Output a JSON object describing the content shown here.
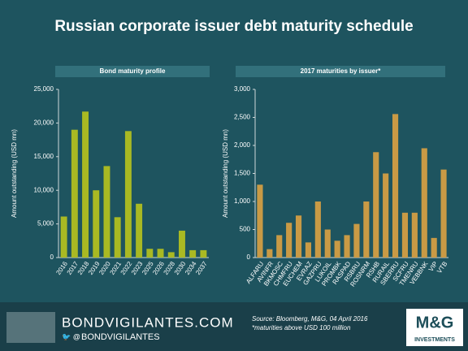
{
  "title": "Russian corporate issuer debt maturity schedule",
  "chart_data": [
    {
      "type": "bar",
      "title": "Bond maturity profile",
      "y_label": "Amount outstanding (USD mn)",
      "categories": [
        "2016",
        "2017",
        "2018",
        "2019",
        "2020",
        "2021",
        "2022",
        "2023",
        "2025",
        "2026",
        "2028",
        "2030",
        "2034",
        "2037"
      ],
      "values": [
        6100,
        19000,
        21700,
        10000,
        13600,
        6000,
        18800,
        8000,
        1300,
        1300,
        800,
        4000,
        1100,
        1100
      ],
      "color": "#a9b923",
      "ylim": [
        0,
        25000
      ],
      "yticks": [
        0,
        {
          "value": 5000,
          "label": "5,000"
        },
        {
          "value": 10000,
          "label": "10,000"
        },
        {
          "value": 15000,
          "label": "15,000"
        },
        {
          "value": 20000,
          "label": "20,000"
        },
        {
          "value": 25000,
          "label": "25,000"
        }
      ]
    },
    {
      "type": "bar",
      "title": "2017 maturities by issuer*",
      "y_label": "Amount outstanding (USD mn)",
      "categories": [
        "ALFARU",
        "AVINFR",
        "BKMOSC",
        "CHMFRU",
        "EUCHEM",
        "EVRAZ",
        "GAZPRU",
        "LUKOIL",
        "PROMBK",
        "RASPAD",
        "RSBRU",
        "ROSNRM",
        "RSHB",
        "RURAIL",
        "SBERRU",
        "SCFRU",
        "TMENRU",
        "VEBBNK",
        "VIP",
        "VTB"
      ],
      "values": [
        1300,
        150,
        400,
        620,
        750,
        270,
        1000,
        500,
        300,
        400,
        600,
        1000,
        1880,
        1500,
        2560,
        800,
        800,
        1950,
        350,
        1570
      ],
      "color": "#c99a45",
      "ylim": [
        0,
        3000
      ],
      "yticks": [
        0,
        500,
        {
          "value": 1000,
          "label": "1,000"
        },
        {
          "value": 1500,
          "label": "1,500"
        },
        {
          "value": 2000,
          "label": "2,000"
        },
        {
          "value": 2500,
          "label": "2,500"
        },
        {
          "value": 3000,
          "label": "3,000"
        }
      ]
    }
  ],
  "footer": {
    "site": "BONDVIGILANTES.COM",
    "handle": "BONDVIGILANTES",
    "source": "Source: Bloomberg, M&G, 04 April 2016",
    "note": "*maturities above USD 100 million",
    "brand": "M&G",
    "brand_sub": "INVESTMENTS"
  }
}
